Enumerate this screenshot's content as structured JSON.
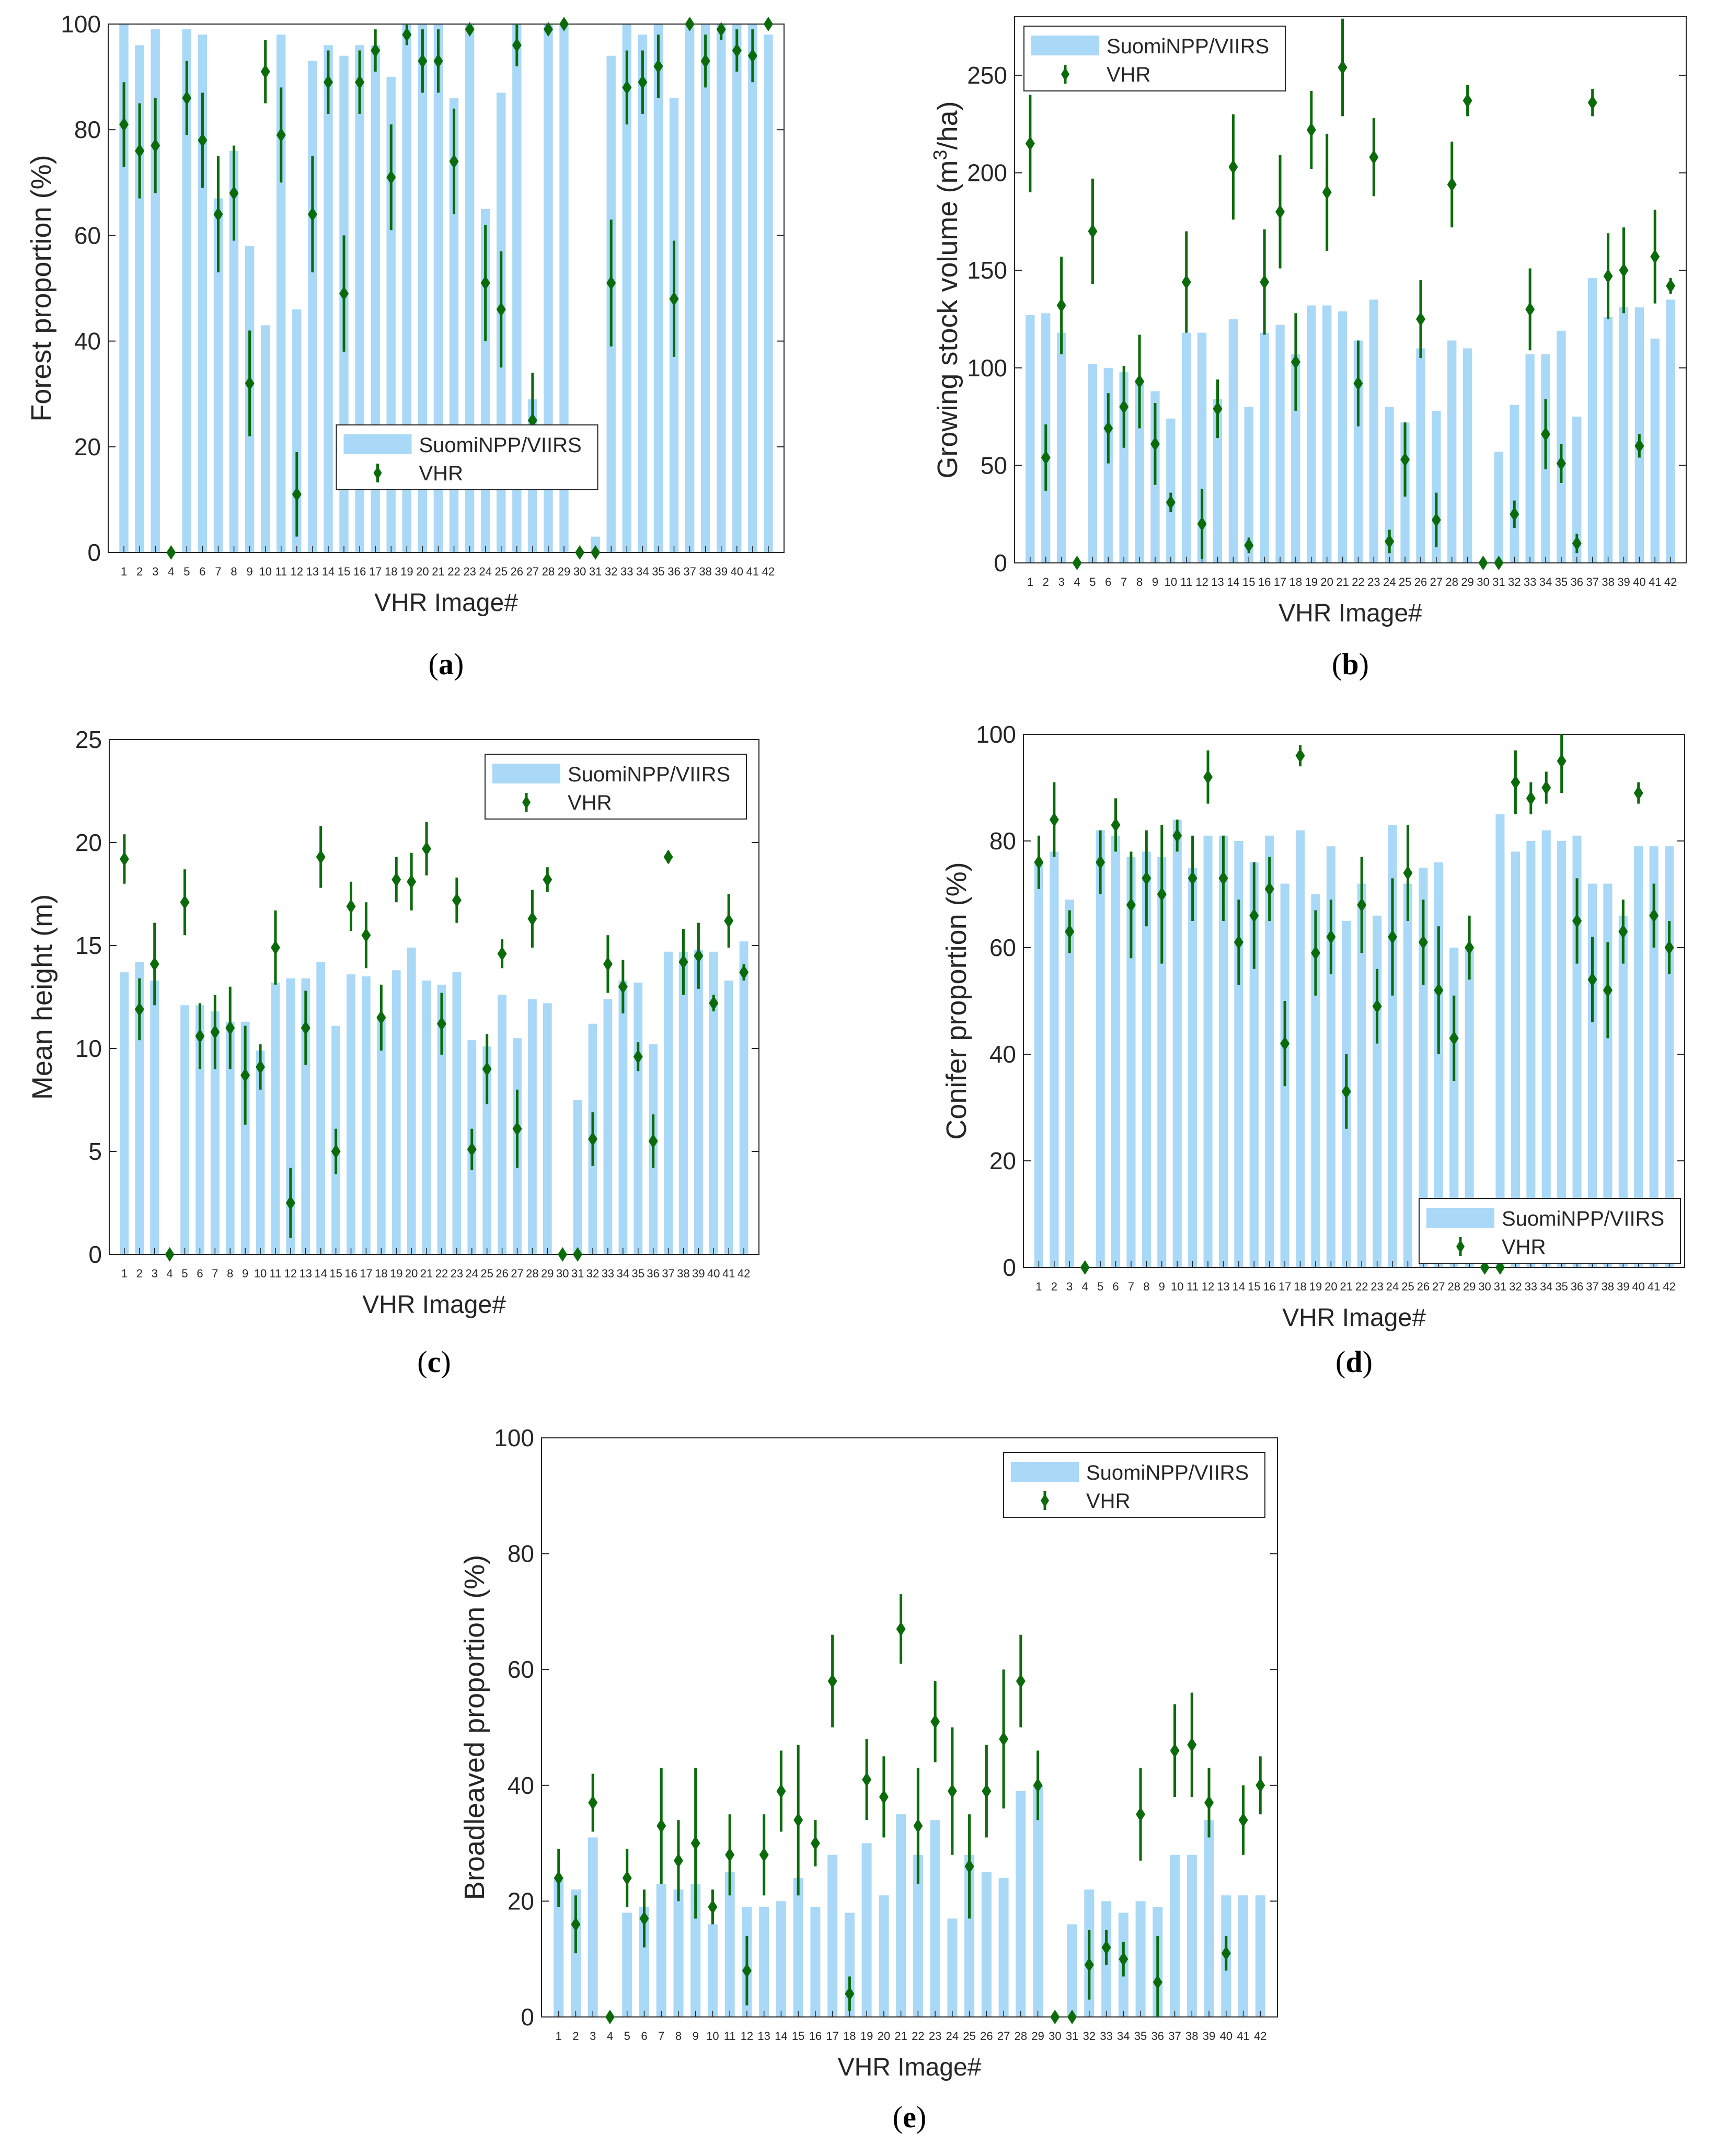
{
  "colors": {
    "bar": "#aad8f7",
    "marker": "#0b6b0b",
    "axis": "#262626"
  },
  "legend": {
    "bar_label": "SuomiNPP/VIIRS",
    "marker_label": "VHR"
  },
  "chart_data": [
    {
      "id": "a",
      "type": "bar",
      "caption": "a",
      "xlabel": "VHR Image#",
      "ylabel": "Forest proportion (%)",
      "ylim": [
        0,
        100
      ],
      "yticks": [
        0,
        20,
        40,
        60,
        80,
        100
      ],
      "categories": [
        "1",
        "2",
        "3",
        "4",
        "5",
        "6",
        "7",
        "8",
        "9",
        "10",
        "11",
        "12",
        "13",
        "14",
        "15",
        "16",
        "17",
        "18",
        "19",
        "20",
        "21",
        "22",
        "23",
        "24",
        "25",
        "26",
        "27",
        "28",
        "29",
        "30",
        "31",
        "32",
        "33",
        "34",
        "35",
        "36",
        "37",
        "38",
        "39",
        "40",
        "41",
        "42"
      ],
      "legend_pos": "bottom-center",
      "series": [
        {
          "name": "SuomiNPP/VIIRS",
          "kind": "bar",
          "values": [
            100,
            96,
            99,
            0,
            99,
            98,
            67,
            76,
            58,
            43,
            98,
            46,
            93,
            96,
            94,
            96,
            96,
            90,
            100,
            100,
            100,
            86,
            100,
            65,
            87,
            100,
            29,
            100,
            100,
            0,
            3,
            94,
            100,
            98,
            100,
            86,
            100,
            100,
            100,
            100,
            100,
            98
          ]
        },
        {
          "name": "VHR",
          "kind": "errorbar",
          "values": [
            81,
            76,
            77,
            0,
            86,
            78,
            64,
            68,
            32,
            91,
            79,
            11,
            64,
            89,
            49,
            89,
            95,
            71,
            98,
            93,
            93,
            74,
            99,
            51,
            46,
            96,
            25,
            99,
            100,
            0,
            0,
            51,
            88,
            89,
            92,
            48,
            100,
            93,
            99,
            95,
            94,
            100
          ],
          "errors": [
            8,
            9,
            9,
            0,
            7,
            9,
            11,
            9,
            10,
            6,
            9,
            8,
            11,
            6,
            11,
            6,
            4,
            10,
            2,
            6,
            6,
            10,
            1,
            11,
            11,
            4,
            9,
            1,
            1,
            0,
            0,
            12,
            7,
            6,
            6,
            11,
            1,
            5,
            2,
            4,
            5,
            1
          ]
        }
      ]
    },
    {
      "id": "b",
      "type": "bar",
      "caption": "b",
      "xlabel": "VHR Image#",
      "ylabel": "Growing stock volume (m3/ha)",
      "ylabel_parts": [
        "Growing stock volume (m",
        "3",
        "/ha)"
      ],
      "ylim": [
        0,
        280
      ],
      "yticks": [
        0,
        50,
        100,
        150,
        200,
        250
      ],
      "categories": [
        "1",
        "2",
        "3",
        "4",
        "5",
        "6",
        "7",
        "8",
        "9",
        "10",
        "11",
        "12",
        "13",
        "14",
        "15",
        "16",
        "17",
        "18",
        "19",
        "20",
        "21",
        "22",
        "23",
        "24",
        "25",
        "26",
        "27",
        "28",
        "29",
        "30",
        "31",
        "32",
        "33",
        "34",
        "35",
        "36",
        "37",
        "38",
        "39",
        "40",
        "41",
        "42"
      ],
      "legend_pos": "top-left",
      "series": [
        {
          "name": "SuomiNPP/VIIRS",
          "kind": "bar",
          "values": [
            127,
            128,
            118,
            0,
            102,
            100,
            98,
            94,
            88,
            74,
            118,
            118,
            84,
            125,
            80,
            118,
            122,
            107,
            132,
            132,
            129,
            114,
            135,
            80,
            72,
            110,
            78,
            114,
            110,
            0,
            57,
            81,
            107,
            107,
            119,
            75,
            146,
            126,
            131,
            131,
            115,
            135
          ]
        },
        {
          "name": "VHR",
          "kind": "errorbar",
          "values": [
            215,
            54,
            132,
            0,
            170,
            69,
            80,
            93,
            61,
            31,
            144,
            20,
            79,
            203,
            9,
            144,
            180,
            103,
            222,
            190,
            254,
            92,
            208,
            11,
            53,
            125,
            22,
            194,
            237,
            0,
            0,
            25,
            130,
            66,
            51,
            10,
            236,
            147,
            150,
            60,
            157,
            142
          ],
          "errors": [
            25,
            17,
            25,
            0,
            27,
            18,
            21,
            24,
            21,
            5,
            26,
            18,
            15,
            27,
            4,
            27,
            29,
            25,
            20,
            30,
            25,
            22,
            20,
            6,
            19,
            20,
            14,
            22,
            8,
            0,
            0,
            7,
            21,
            18,
            10,
            5,
            7,
            22,
            22,
            6,
            24,
            4
          ]
        }
      ]
    },
    {
      "id": "c",
      "type": "bar",
      "caption": "c",
      "xlabel": "VHR Image#",
      "ylabel": "Mean height (m)",
      "ylim": [
        0,
        25
      ],
      "yticks": [
        0,
        5,
        10,
        15,
        20,
        25
      ],
      "categories": [
        "1",
        "2",
        "3",
        "4",
        "5",
        "6",
        "7",
        "8",
        "9",
        "10",
        "11",
        "12",
        "13",
        "14",
        "15",
        "16",
        "17",
        "18",
        "19",
        "20",
        "21",
        "22",
        "23",
        "24",
        "25",
        "26",
        "27",
        "28",
        "29",
        "30",
        "31",
        "32",
        "33",
        "34",
        "35",
        "36",
        "37",
        "38",
        "39",
        "40",
        "41",
        "42"
      ],
      "legend_pos": "top-right",
      "series": [
        {
          "name": "SuomiNPP/VIIRS",
          "kind": "bar",
          "values": [
            13.7,
            14.2,
            13.3,
            0,
            12.1,
            12.1,
            11.8,
            11.3,
            11.3,
            9.9,
            13.2,
            13.4,
            13.4,
            14.2,
            11.1,
            13.6,
            13.5,
            11.6,
            13.8,
            14.9,
            13.3,
            13.1,
            13.7,
            10.4,
            10.1,
            12.6,
            10.5,
            12.4,
            12.2,
            0,
            7.5,
            11.2,
            12.4,
            13.3,
            13.2,
            10.2,
            14.7,
            14.7,
            14.8,
            14.7,
            13.3,
            15.2
          ]
        },
        {
          "name": "VHR",
          "kind": "errorbar",
          "values": [
            19.2,
            11.9,
            14.1,
            0,
            17.1,
            10.6,
            10.8,
            11.0,
            8.7,
            9.1,
            14.9,
            2.5,
            11.0,
            19.3,
            5.0,
            16.9,
            15.5,
            11.5,
            18.2,
            18.1,
            19.7,
            11.2,
            17.2,
            5.1,
            9.0,
            14.6,
            6.1,
            16.3,
            18.2,
            0,
            0,
            5.6,
            14.1,
            13.0,
            9.6,
            5.5,
            19.3,
            14.2,
            14.5,
            12.2,
            16.2,
            13.7
          ]
        },
        {
          "name": "VHR_errors",
          "kind": "errors",
          "values": [
            1.2,
            1.5,
            2.0,
            0,
            1.6,
            1.6,
            1.8,
            2.0,
            2.4,
            1.1,
            1.8,
            1.7,
            1.8,
            1.5,
            1.1,
            1.2,
            1.6,
            1.6,
            1.1,
            1.4,
            1.3,
            1.5,
            1.1,
            1.0,
            1.7,
            0.7,
            1.9,
            1.4,
            0.6,
            0,
            0,
            1.3,
            1.4,
            1.3,
            0.7,
            1.3,
            0.3,
            1.6,
            1.6,
            0.4,
            1.3,
            0.4
          ]
        }
      ]
    },
    {
      "id": "d",
      "type": "bar",
      "caption": "d",
      "xlabel": "VHR Image#",
      "ylabel": "Conifer proportion (%)",
      "ylim": [
        0,
        100
      ],
      "yticks": [
        0,
        20,
        40,
        60,
        80,
        100
      ],
      "categories": [
        "1",
        "2",
        "3",
        "4",
        "5",
        "6",
        "7",
        "8",
        "9",
        "10",
        "11",
        "12",
        "13",
        "14",
        "15",
        "16",
        "17",
        "18",
        "19",
        "20",
        "21",
        "22",
        "23",
        "24",
        "25",
        "26",
        "27",
        "28",
        "29",
        "30",
        "31",
        "32",
        "33",
        "34",
        "35",
        "36",
        "37",
        "38",
        "39",
        "40",
        "41",
        "42"
      ],
      "legend_pos": "bottom-right",
      "series": [
        {
          "name": "SuomiNPP/VIIRS",
          "kind": "bar",
          "values": [
            76,
            78,
            69,
            0,
            82,
            81,
            77,
            78,
            77,
            84,
            75,
            81,
            81,
            80,
            76,
            81,
            72,
            82,
            70,
            79,
            65,
            72,
            66,
            83,
            72,
            75,
            76,
            60,
            60,
            0,
            85,
            78,
            80,
            82,
            80,
            81,
            72,
            72,
            66,
            79,
            79,
            79
          ]
        },
        {
          "name": "VHR",
          "kind": "errorbar",
          "values": [
            76,
            84,
            63,
            0,
            76,
            83,
            68,
            73,
            70,
            81,
            73,
            92,
            73,
            61,
            66,
            71,
            42,
            96,
            59,
            62,
            33,
            68,
            49,
            62,
            74,
            61,
            52,
            43,
            60,
            0,
            0,
            91,
            88,
            90,
            95,
            65,
            54,
            52,
            63,
            89,
            66,
            60
          ]
        },
        {
          "name": "VHR_errors",
          "kind": "errors",
          "values": [
            5,
            7,
            4,
            0,
            6,
            5,
            10,
            9,
            13,
            3,
            8,
            5,
            8,
            8,
            10,
            6,
            8,
            2,
            8,
            7,
            7,
            9,
            7,
            11,
            9,
            8,
            12,
            8,
            6,
            0,
            0,
            6,
            3,
            3,
            6,
            8,
            8,
            9,
            6,
            2,
            6,
            5
          ]
        }
      ]
    },
    {
      "id": "e",
      "type": "bar",
      "caption": "e",
      "xlabel": "VHR Image#",
      "ylabel": "Broadleaved proportion (%)",
      "ylim": [
        0,
        100
      ],
      "yticks": [
        0,
        20,
        40,
        60,
        80,
        100
      ],
      "categories": [
        "1",
        "2",
        "3",
        "4",
        "5",
        "6",
        "7",
        "8",
        "9",
        "10",
        "11",
        "12",
        "13",
        "14",
        "15",
        "16",
        "17",
        "18",
        "19",
        "20",
        "21",
        "22",
        "23",
        "24",
        "25",
        "26",
        "27",
        "28",
        "29",
        "30",
        "31",
        "32",
        "33",
        "34",
        "35",
        "36",
        "37",
        "38",
        "39",
        "40",
        "41",
        "42"
      ],
      "legend_pos": "top-right",
      "series": [
        {
          "name": "SuomiNPP/VIIRS",
          "kind": "bar",
          "values": [
            24,
            22,
            31,
            0,
            18,
            19,
            23,
            22,
            23,
            16,
            25,
            19,
            19,
            20,
            24,
            19,
            28,
            18,
            30,
            21,
            35,
            28,
            34,
            17,
            28,
            25,
            24,
            39,
            40,
            0,
            16,
            22,
            20,
            18,
            20,
            19,
            28,
            28,
            34,
            21,
            21,
            21
          ]
        },
        {
          "name": "VHR",
          "kind": "errorbar",
          "values": [
            24,
            16,
            37,
            0,
            24,
            17,
            33,
            27,
            30,
            19,
            28,
            8,
            28,
            39,
            34,
            30,
            58,
            4,
            41,
            38,
            67,
            33,
            51,
            39,
            26,
            39,
            48,
            58,
            40,
            0,
            0,
            9,
            12,
            10,
            35,
            6,
            46,
            47,
            37,
            11,
            34,
            40
          ]
        },
        {
          "name": "VHR_errors",
          "kind": "errors",
          "values": [
            5,
            5,
            5,
            0,
            5,
            5,
            10,
            7,
            13,
            3,
            7,
            6,
            7,
            7,
            13,
            4,
            8,
            3,
            7,
            7,
            6,
            10,
            7,
            11,
            9,
            8,
            12,
            8,
            6,
            0,
            0,
            6,
            3,
            3,
            8,
            8,
            8,
            9,
            6,
            3,
            6,
            5
          ]
        }
      ]
    }
  ]
}
